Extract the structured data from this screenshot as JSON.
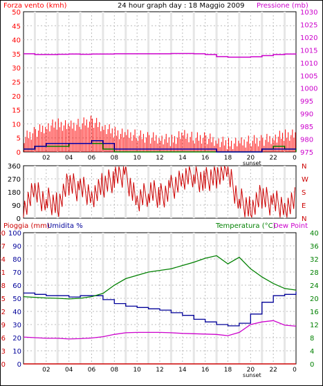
{
  "colors": {
    "wind": "#ff0000",
    "gust": "#ff0000",
    "wind_avg": "#0000aa",
    "wind_low": "#008000",
    "pressure": "#cc00cc",
    "direction": "#cc0000",
    "rain": "#cc0000",
    "humidity": "#000099",
    "temperature": "#008000",
    "dewpoint": "#cc00cc",
    "title": "#000000"
  },
  "top": {
    "left_label": "Forza vento (kmh)",
    "title": "24 hour graph day : 18 Maggio 2009",
    "right_label": "Pressione (mb)"
  },
  "bottom": {
    "rain_label": "Pioggia (mm)",
    "humidity_label": "Umidita %",
    "temp_label": "Temperatura (°C)",
    "dew_label": "Dew Point"
  },
  "sunset_label": "sunset",
  "x_ticks": [
    "02",
    "04",
    "06",
    "08",
    "10",
    "12",
    "14",
    "16",
    "18",
    "20",
    "22",
    "0"
  ],
  "chart_data": [
    {
      "type": "line",
      "title": "24 hour graph day : 18 Maggio 2009",
      "x_hours": [
        0,
        1,
        2,
        3,
        4,
        5,
        6,
        7,
        8,
        9,
        10,
        11,
        12,
        13,
        14,
        15,
        16,
        17,
        18,
        19,
        20,
        21,
        22,
        23,
        24
      ],
      "y_left_label": "Forza vento (kmh)",
      "y_left_ticks": [
        "0",
        "5",
        "10",
        "15",
        "20",
        "25",
        "30",
        "35",
        "40",
        "45",
        "50"
      ],
      "ylim_left": [
        0,
        50
      ],
      "y_right_label": "Pressione (mb)",
      "y_right_ticks": [
        "975",
        "980",
        "985",
        "990",
        "995",
        "1000",
        "1005",
        "1010",
        "1015",
        "1020",
        "1025",
        "1030"
      ],
      "ylim_right": [
        975,
        1030
      ],
      "series": [
        {
          "values": [
            5,
            7,
            9,
            10,
            9,
            10,
            11,
            9,
            7,
            6,
            6,
            5,
            5,
            4,
            6,
            5,
            5,
            4,
            3,
            3,
            4,
            4,
            5,
            6,
            6
          ]
        },
        {
          "values": [
            1,
            2,
            3,
            3,
            3,
            3,
            4,
            3,
            1,
            1,
            1,
            1,
            1,
            1,
            1,
            1,
            1,
            0,
            0,
            0,
            0,
            1,
            1,
            1,
            1
          ]
        },
        {
          "values": [
            1,
            2,
            2,
            2,
            3,
            3,
            3,
            1,
            0,
            0,
            0,
            0,
            0,
            0,
            0,
            0,
            0,
            0,
            0,
            0,
            0,
            1,
            2,
            1,
            0
          ]
        },
        {
          "axis": "right",
          "values": [
            1013.5,
            1013.2,
            1013.2,
            1013.3,
            1013.4,
            1013.3,
            1013.4,
            1013.4,
            1013.5,
            1013.5,
            1013.5,
            1013.5,
            1013.5,
            1013.6,
            1013.6,
            1013.5,
            1013.2,
            1012.4,
            1012.2,
            1012.2,
            1012.3,
            1012.8,
            1013.2,
            1013.4,
            1013.6
          ]
        }
      ]
    },
    {
      "type": "scatter",
      "y_ticks_left": [
        "0",
        "90",
        "180",
        "270",
        "360"
      ],
      "y_ticks_right": [
        "N",
        "E",
        "S",
        "W",
        "N"
      ],
      "ylim": [
        0,
        360
      ],
      "series": [
        {
          "values": [
            60,
            180,
            120,
            90,
            240,
            200,
            160,
            220,
            280,
            300,
            120,
            180,
            150,
            200,
            260,
            300,
            250,
            300,
            310,
            120,
            60,
            150,
            100,
            80,
            120
          ]
        }
      ]
    },
    {
      "type": "line",
      "x_hours": [
        0,
        1,
        2,
        3,
        4,
        5,
        6,
        7,
        8,
        9,
        10,
        11,
        12,
        13,
        14,
        15,
        16,
        17,
        18,
        19,
        20,
        21,
        22,
        23,
        24
      ],
      "y_left1_label": "Pioggia (mm)",
      "y_left1_ticks": [
        "0",
        "3",
        "6",
        "9",
        "12",
        "15",
        "18",
        "21",
        "24",
        "27",
        "30"
      ],
      "y_left2_label": "Umidita %",
      "y_left2_ticks": [
        "0",
        "10",
        "20",
        "30",
        "40",
        "50",
        "60",
        "70",
        "80",
        "90",
        "100"
      ],
      "y_right_label": "Temperatura (°C)",
      "y_right_ticks": [
        "0",
        "4",
        "8",
        "12",
        "16",
        "20",
        "24",
        "28",
        "32",
        "36",
        "40"
      ],
      "ylim_temp": [
        0,
        40
      ],
      "series": [
        {
          "name": "Pioggia (mm)",
          "axis": "rain",
          "values": [
            0,
            0,
            0,
            0,
            0,
            0,
            0,
            0,
            0,
            0,
            0,
            0,
            0,
            0,
            0,
            0,
            0,
            0,
            0,
            0,
            0,
            0,
            0,
            0,
            0
          ]
        },
        {
          "name": "Umidita %",
          "axis": "humidity",
          "values": [
            54,
            53,
            52,
            52,
            51,
            52,
            52,
            49,
            46,
            44,
            43,
            42,
            41,
            39,
            37,
            34,
            32,
            30,
            29,
            31,
            38,
            47,
            52,
            53,
            55
          ]
        },
        {
          "name": "Temperatura (°C)",
          "axis": "temp",
          "values": [
            20.5,
            20.3,
            20.1,
            20,
            19.8,
            20,
            20.5,
            21.5,
            24,
            26,
            27,
            28,
            28.5,
            29,
            30,
            31,
            32.2,
            33,
            30.5,
            32.5,
            29,
            26.5,
            24.5,
            23,
            22.5
          ]
        },
        {
          "name": "Dew Point",
          "axis": "temp",
          "values": [
            8.2,
            8,
            7.8,
            7.8,
            7.6,
            7.7,
            7.9,
            8.3,
            9,
            9.5,
            9.6,
            9.6,
            9.6,
            9.5,
            9.3,
            9.2,
            9.1,
            9,
            8.6,
            9.6,
            12,
            12.8,
            13.2,
            11.8,
            11.5
          ]
        }
      ]
    }
  ]
}
